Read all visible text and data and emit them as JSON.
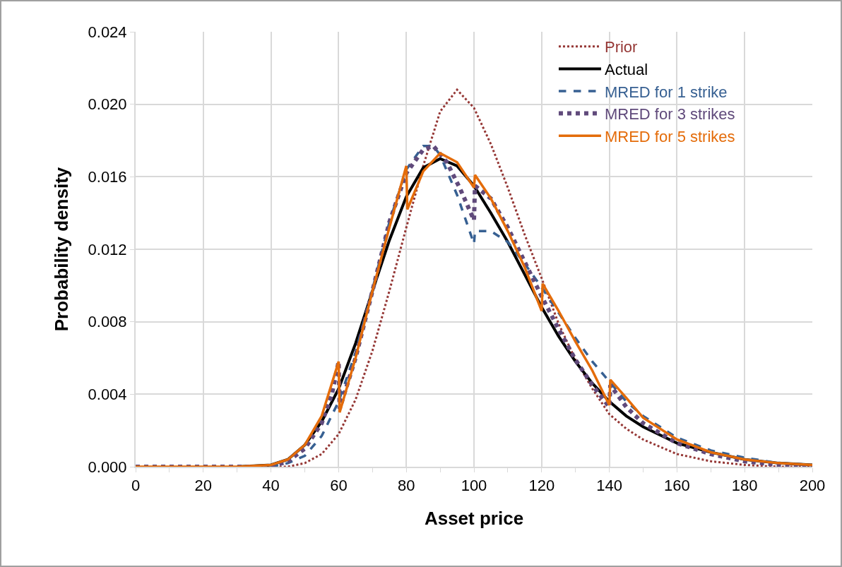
{
  "chart_data": {
    "type": "line",
    "xlabel": "Asset price",
    "ylabel": "Probability density",
    "xlim": [
      0,
      200
    ],
    "xticks": [
      0,
      20,
      40,
      60,
      80,
      100,
      120,
      140,
      160,
      180,
      200
    ],
    "ylim": [
      0,
      0.024
    ],
    "yticks": [
      {
        "value": 0,
        "label": "0.000"
      },
      {
        "value": 0.004,
        "label": "0.004"
      },
      {
        "value": 0.008,
        "label": "0.008"
      },
      {
        "value": 0.012,
        "label": "0.012"
      },
      {
        "value": 0.016,
        "label": "0.016"
      },
      {
        "value": 0.02,
        "label": "0.020"
      },
      {
        "value": 0.024,
        "label": "0.024"
      }
    ],
    "grid": true,
    "legend": "top right",
    "marker": "none",
    "series": [
      {
        "name": "Prior",
        "color": "#953735",
        "line_style": "dotted",
        "x": [
          30,
          40,
          45,
          50,
          55,
          60,
          65,
          70,
          75,
          80,
          85,
          90,
          95,
          100,
          105,
          110,
          115,
          120,
          125,
          130,
          135,
          140,
          145,
          150,
          160,
          170,
          180,
          190,
          200
        ],
        "values": [
          0,
          0,
          0,
          0.0002,
          0.0007,
          0.0018,
          0.0037,
          0.0064,
          0.0097,
          0.0132,
          0.0166,
          0.0196,
          0.0208,
          0.0198,
          0.0178,
          0.0154,
          0.0128,
          0.0104,
          0.0079,
          0.0059,
          0.0043,
          0.0029,
          0.0021,
          0.0015,
          0.0007,
          0.0003,
          0.0001,
          0,
          0
        ]
      },
      {
        "name": "Actual",
        "color": "#000000",
        "line_style": "solid",
        "x": [
          30,
          40,
          45,
          50,
          55,
          60,
          65,
          70,
          75,
          80,
          85,
          90,
          95,
          100,
          105,
          110,
          115,
          120,
          125,
          130,
          135,
          140,
          145,
          150,
          160,
          170,
          180,
          190,
          200
        ],
        "values": [
          0,
          0.0001,
          0.0004,
          0.0012,
          0.0025,
          0.0043,
          0.0068,
          0.0097,
          0.0125,
          0.0149,
          0.0165,
          0.017,
          0.0166,
          0.0155,
          0.014,
          0.0124,
          0.0106,
          0.0088,
          0.0072,
          0.0058,
          0.0046,
          0.0036,
          0.0028,
          0.0022,
          0.0013,
          0.0008,
          0.0004,
          0.0002,
          0.0001
        ]
      },
      {
        "name": "MRED for 1 strike",
        "color": "#376092",
        "line_style": "dashed",
        "x": [
          40,
          45,
          50,
          55,
          60,
          65,
          70,
          75,
          80,
          85,
          88,
          90,
          95,
          100,
          100.3,
          105,
          110,
          115,
          120,
          125,
          130,
          135,
          140,
          145,
          150,
          160,
          170,
          180,
          190,
          200
        ],
        "values": [
          0,
          0.0002,
          0.0006,
          0.0017,
          0.0036,
          0.0063,
          0.0098,
          0.0135,
          0.0164,
          0.0177,
          0.0177,
          0.0172,
          0.015,
          0.0123,
          0.013,
          0.013,
          0.0124,
          0.0112,
          0.0099,
          0.0085,
          0.0071,
          0.0058,
          0.0047,
          0.0036,
          0.0028,
          0.0016,
          0.0009,
          0.0005,
          0.0002,
          0.0001
        ]
      },
      {
        "name": "MRED for 3 strikes",
        "color": "#604a7b",
        "line_style": "dotted",
        "x": [
          0,
          10,
          20,
          30,
          40,
          45,
          50,
          55,
          58,
          60,
          60.3,
          65,
          70,
          75,
          80,
          85,
          88,
          92,
          96,
          100,
          100.3,
          105,
          110,
          115,
          120,
          125,
          130,
          135,
          140,
          140.3,
          145,
          150,
          160,
          170,
          180,
          190,
          200
        ],
        "values": [
          0,
          0,
          0,
          0,
          0,
          0.0003,
          0.001,
          0.0024,
          0.004,
          0.0058,
          0.0032,
          0.006,
          0.0097,
          0.0135,
          0.0162,
          0.0175,
          0.0177,
          0.0168,
          0.0153,
          0.0136,
          0.0155,
          0.0148,
          0.0132,
          0.0113,
          0.0094,
          0.0076,
          0.0059,
          0.0045,
          0.0033,
          0.0045,
          0.0033,
          0.0024,
          0.0013,
          0.0007,
          0.0003,
          0.0001,
          0
        ]
      },
      {
        "name": "MRED for 5 strikes",
        "color": "#e46c0a",
        "line_style": "solid",
        "x": [
          0,
          10,
          20,
          30,
          40,
          45,
          50,
          55,
          60,
          60.3,
          65,
          70,
          75,
          80,
          80.3,
          85,
          90,
          95,
          100,
          100.3,
          105,
          110,
          115,
          120,
          120.3,
          125,
          130,
          135,
          140,
          140.3,
          145,
          150,
          160,
          170,
          180,
          190,
          200
        ],
        "values": [
          0,
          0,
          0,
          0,
          0.0001,
          0.0004,
          0.0012,
          0.0028,
          0.0058,
          0.003,
          0.006,
          0.0097,
          0.0132,
          0.0166,
          0.0142,
          0.0163,
          0.0173,
          0.0168,
          0.0154,
          0.0161,
          0.0148,
          0.013,
          0.011,
          0.0086,
          0.0101,
          0.0086,
          0.0069,
          0.0053,
          0.0034,
          0.0048,
          0.0038,
          0.0027,
          0.0015,
          0.0008,
          0.0004,
          0.0002,
          0.0001
        ]
      }
    ]
  }
}
